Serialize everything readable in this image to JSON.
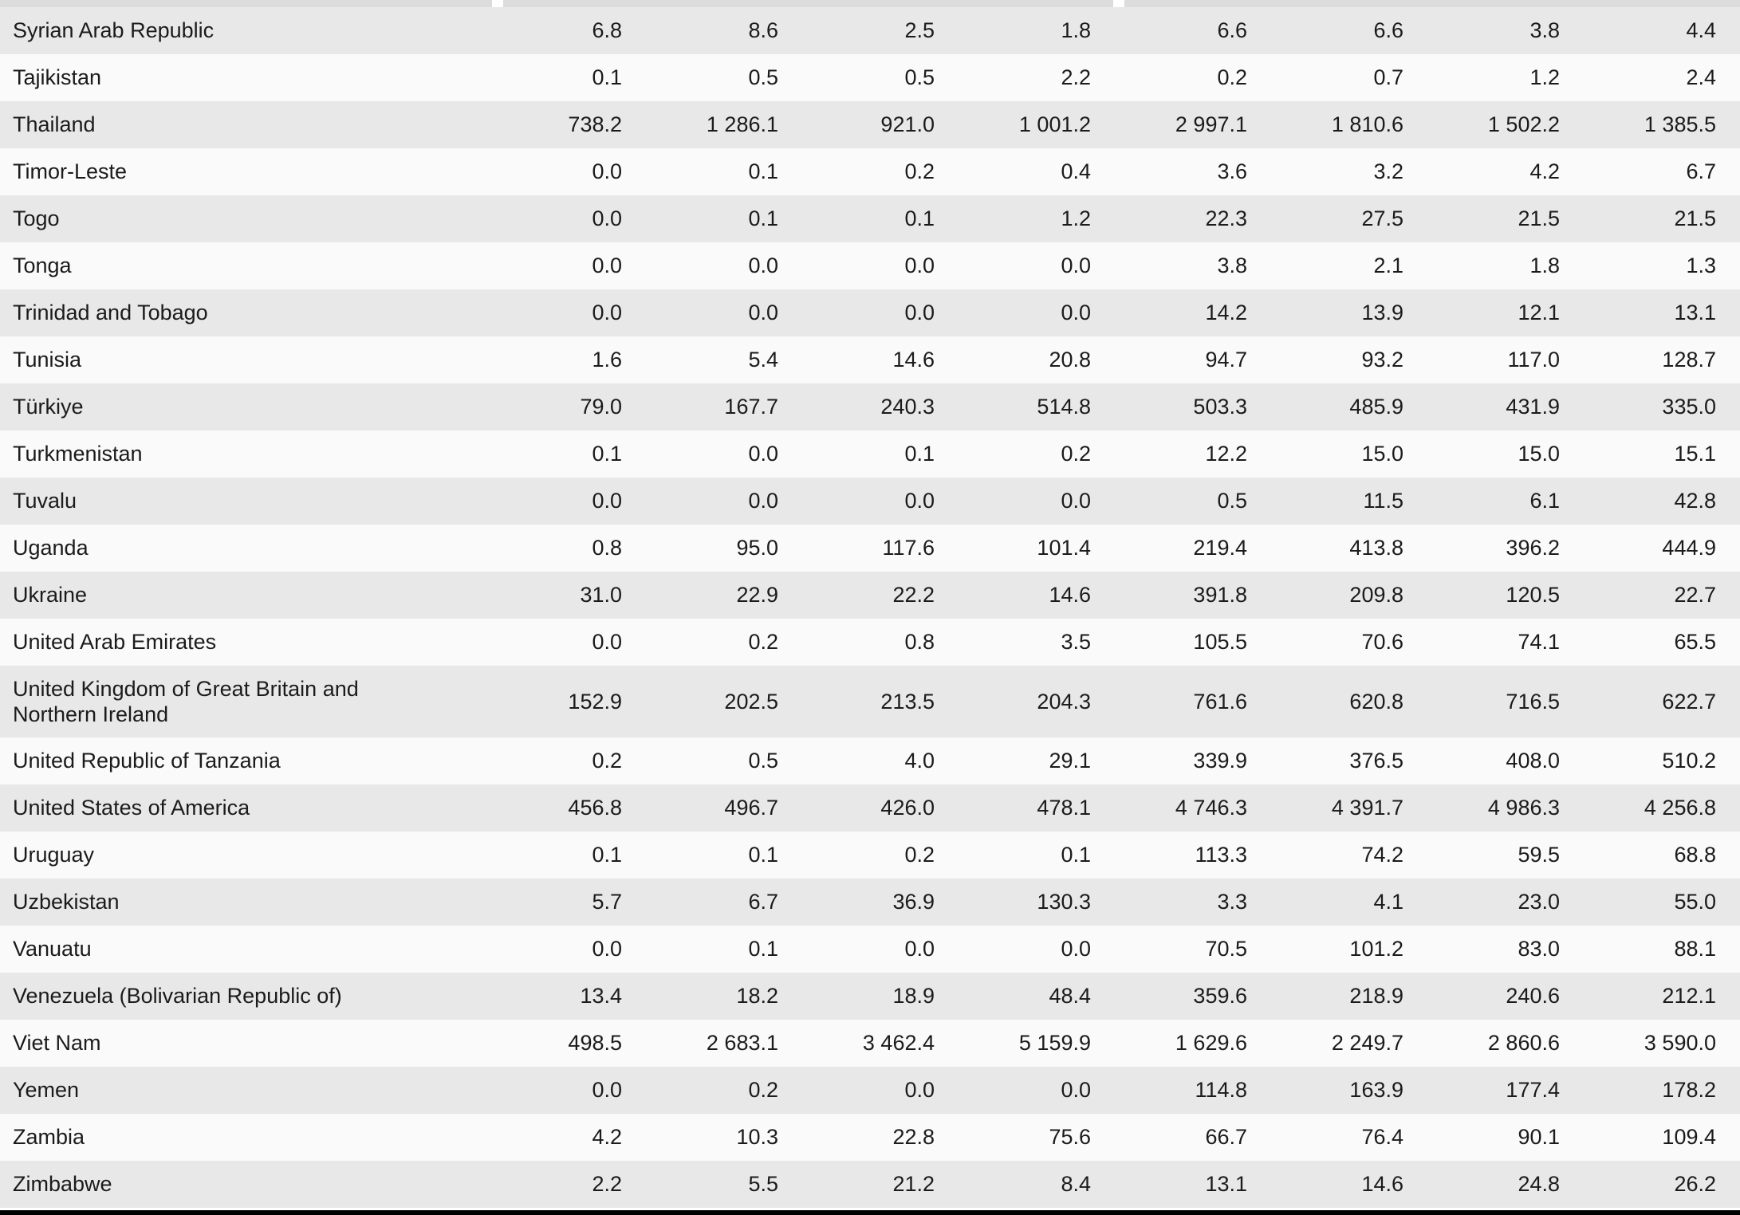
{
  "table": {
    "description": "Country data table, countries S-Z, 8 numeric columns per country",
    "rows": [
      {
        "country": "Syrian Arab Republic",
        "values": [
          "6.8",
          "8.6",
          "2.5",
          "1.8",
          "6.6",
          "6.6",
          "3.8",
          "4.4"
        ]
      },
      {
        "country": "Tajikistan",
        "values": [
          "0.1",
          "0.5",
          "0.5",
          "2.2",
          "0.2",
          "0.7",
          "1.2",
          "2.4"
        ]
      },
      {
        "country": "Thailand",
        "values": [
          "738.2",
          "1 286.1",
          "921.0",
          "1 001.2",
          "2 997.1",
          "1 810.6",
          "1 502.2",
          "1 385.5"
        ]
      },
      {
        "country": "Timor-Leste",
        "values": [
          "0.0",
          "0.1",
          "0.2",
          "0.4",
          "3.6",
          "3.2",
          "4.2",
          "6.7"
        ]
      },
      {
        "country": "Togo",
        "values": [
          "0.0",
          "0.1",
          "0.1",
          "1.2",
          "22.3",
          "27.5",
          "21.5",
          "21.5"
        ]
      },
      {
        "country": "Tonga",
        "values": [
          "0.0",
          "0.0",
          "0.0",
          "0.0",
          "3.8",
          "2.1",
          "1.8",
          "1.3"
        ]
      },
      {
        "country": "Trinidad and Tobago",
        "values": [
          "0.0",
          "0.0",
          "0.0",
          "0.0",
          "14.2",
          "13.9",
          "12.1",
          "13.1"
        ]
      },
      {
        "country": "Tunisia",
        "values": [
          "1.6",
          "5.4",
          "14.6",
          "20.8",
          "94.7",
          "93.2",
          "117.0",
          "128.7"
        ]
      },
      {
        "country": "Türkiye",
        "values": [
          "79.0",
          "167.7",
          "240.3",
          "514.8",
          "503.3",
          "485.9",
          "431.9",
          "335.0"
        ]
      },
      {
        "country": "Turkmenistan",
        "values": [
          "0.1",
          "0.0",
          "0.1",
          "0.2",
          "12.2",
          "15.0",
          "15.0",
          "15.1"
        ]
      },
      {
        "country": "Tuvalu",
        "values": [
          "0.0",
          "0.0",
          "0.0",
          "0.0",
          "0.5",
          "11.5",
          "6.1",
          "42.8"
        ]
      },
      {
        "country": "Uganda",
        "values": [
          "0.8",
          "95.0",
          "117.6",
          "101.4",
          "219.4",
          "413.8",
          "396.2",
          "444.9"
        ]
      },
      {
        "country": "Ukraine",
        "values": [
          "31.0",
          "22.9",
          "22.2",
          "14.6",
          "391.8",
          "209.8",
          "120.5",
          "22.7"
        ]
      },
      {
        "country": "United Arab Emirates",
        "values": [
          "0.0",
          "0.2",
          "0.8",
          "3.5",
          "105.5",
          "70.6",
          "74.1",
          "65.5"
        ]
      },
      {
        "country": "United Kingdom of Great Britain and Northern Ireland",
        "values": [
          "152.9",
          "202.5",
          "213.5",
          "204.3",
          "761.6",
          "620.8",
          "716.5",
          "622.7"
        ]
      },
      {
        "country": "United Republic of Tanzania",
        "values": [
          "0.2",
          "0.5",
          "4.0",
          "29.1",
          "339.9",
          "376.5",
          "408.0",
          "510.2"
        ]
      },
      {
        "country": "United States of America",
        "values": [
          "456.8",
          "496.7",
          "426.0",
          "478.1",
          "4 746.3",
          "4 391.7",
          "4 986.3",
          "4 256.8"
        ]
      },
      {
        "country": "Uruguay",
        "values": [
          "0.1",
          "0.1",
          "0.2",
          "0.1",
          "113.3",
          "74.2",
          "59.5",
          "68.8"
        ]
      },
      {
        "country": "Uzbekistan",
        "values": [
          "5.7",
          "6.7",
          "36.9",
          "130.3",
          "3.3",
          "4.1",
          "23.0",
          "55.0"
        ]
      },
      {
        "country": "Vanuatu",
        "values": [
          "0.0",
          "0.1",
          "0.0",
          "0.0",
          "70.5",
          "101.2",
          "83.0",
          "88.1"
        ]
      },
      {
        "country": "Venezuela (Bolivarian Republic of)",
        "values": [
          "13.4",
          "18.2",
          "18.9",
          "48.4",
          "359.6",
          "218.9",
          "240.6",
          "212.1"
        ]
      },
      {
        "country": "Viet Nam",
        "values": [
          "498.5",
          "2 683.1",
          "3 462.4",
          "5 159.9",
          "1 629.6",
          "2 249.7",
          "2 860.6",
          "3 590.0"
        ]
      },
      {
        "country": "Yemen",
        "values": [
          "0.0",
          "0.2",
          "0.0",
          "0.0",
          "114.8",
          "163.9",
          "177.4",
          "178.2"
        ]
      },
      {
        "country": "Zambia",
        "values": [
          "4.2",
          "10.3",
          "22.8",
          "75.6",
          "66.7",
          "76.4",
          "90.1",
          "109.4"
        ]
      },
      {
        "country": "Zimbabwe",
        "values": [
          "2.2",
          "5.5",
          "21.2",
          "8.4",
          "13.1",
          "14.6",
          "24.8",
          "26.2"
        ]
      }
    ]
  },
  "colors": {
    "stripe_row": "#e8e8e8",
    "plain_row": "#fafafa",
    "header_strip": "#dcdcdc",
    "bottom_rule": "#000000",
    "text": "#1b1b1b"
  }
}
